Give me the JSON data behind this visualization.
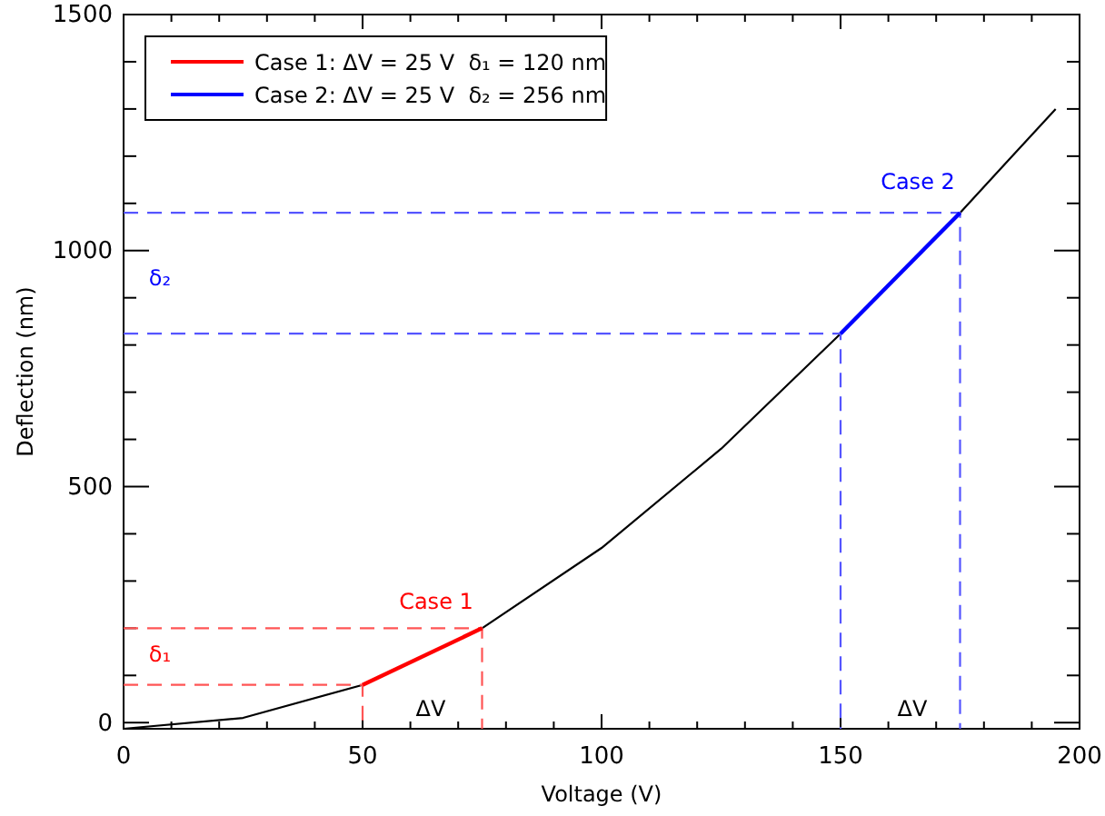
{
  "chart_data": {
    "type": "line",
    "xlabel": "Voltage (V)",
    "ylabel": "Deflection (nm)",
    "xlim": [
      0,
      200
    ],
    "ylim": [
      -13,
      1500
    ],
    "xticks": [
      0,
      {
        "value": 10,
        "label": null
      },
      {
        "value": 20,
        "label": null
      },
      {
        "value": 30,
        "label": null
      },
      {
        "value": 40,
        "label": null
      },
      50,
      {
        "value": 60,
        "label": null
      },
      {
        "value": 70,
        "label": null
      },
      {
        "value": 80,
        "label": null
      },
      {
        "value": 90,
        "label": null
      },
      100,
      {
        "value": 110,
        "label": null
      },
      {
        "value": 120,
        "label": null
      },
      {
        "value": 130,
        "label": null
      },
      {
        "value": 140,
        "label": null
      },
      150,
      {
        "value": 160,
        "label": null
      },
      {
        "value": 170,
        "label": null
      },
      {
        "value": 180,
        "label": null
      },
      {
        "value": 190,
        "label": null
      },
      200
    ],
    "yticks": [
      0,
      {
        "value": 100,
        "label": null
      },
      {
        "value": 200,
        "label": null
      },
      {
        "value": 300,
        "label": null
      },
      {
        "value": 400,
        "label": null
      },
      500,
      {
        "value": 600,
        "label": null
      },
      {
        "value": 700,
        "label": null
      },
      {
        "value": 800,
        "label": null
      },
      {
        "value": 900,
        "label": null
      },
      1000,
      {
        "value": 1100,
        "label": null
      },
      {
        "value": 1200,
        "label": null
      },
      {
        "value": 1300,
        "label": null
      },
      {
        "value": 1400,
        "label": null
      },
      1500
    ],
    "grid": false,
    "legend": "top left",
    "marker": "none",
    "line_style": "solid",
    "series": [
      {
        "color": "#000000",
        "x": [
          0,
          25,
          50,
          75,
          100,
          125,
          150,
          175,
          185,
          195
        ],
        "values": [
          -13,
          10,
          80,
          200,
          370,
          580,
          824,
          1080,
          1190,
          1300
        ]
      },
      {
        "color": "#ff5555",
        "line_style": "dashed",
        "x": [
          0,
          50,
          50
        ],
        "values": [
          80,
          80,
          -13
        ]
      },
      {
        "color": "#ff5555",
        "line_style": "dashed",
        "x": [
          0,
          75,
          75
        ],
        "values": [
          200,
          200,
          -13
        ]
      },
      {
        "color": "#5555ff",
        "line_style": "dashed",
        "x": [
          0,
          150,
          150
        ],
        "values": [
          824,
          824,
          -13
        ]
      },
      {
        "color": "#5555ff",
        "line_style": "dashed",
        "x": [
          0,
          175,
          175
        ],
        "values": [
          1080,
          1080,
          -13
        ]
      },
      {
        "name": "Case 1: ΔV = 25 V  δ₁ = 120 nm",
        "color": "#ff0000",
        "x": [
          50,
          75
        ],
        "values": [
          80,
          200
        ]
      },
      {
        "name": "Case 2: ΔV = 25 V  δ₂ = 256 nm",
        "color": "#0000ff",
        "x": [
          150,
          175
        ],
        "values": [
          824,
          1080
        ]
      }
    ],
    "annotations": [
      "Case 1",
      "Case 2",
      "δ₁",
      "δ₂",
      "ΔV",
      "ΔV"
    ]
  }
}
